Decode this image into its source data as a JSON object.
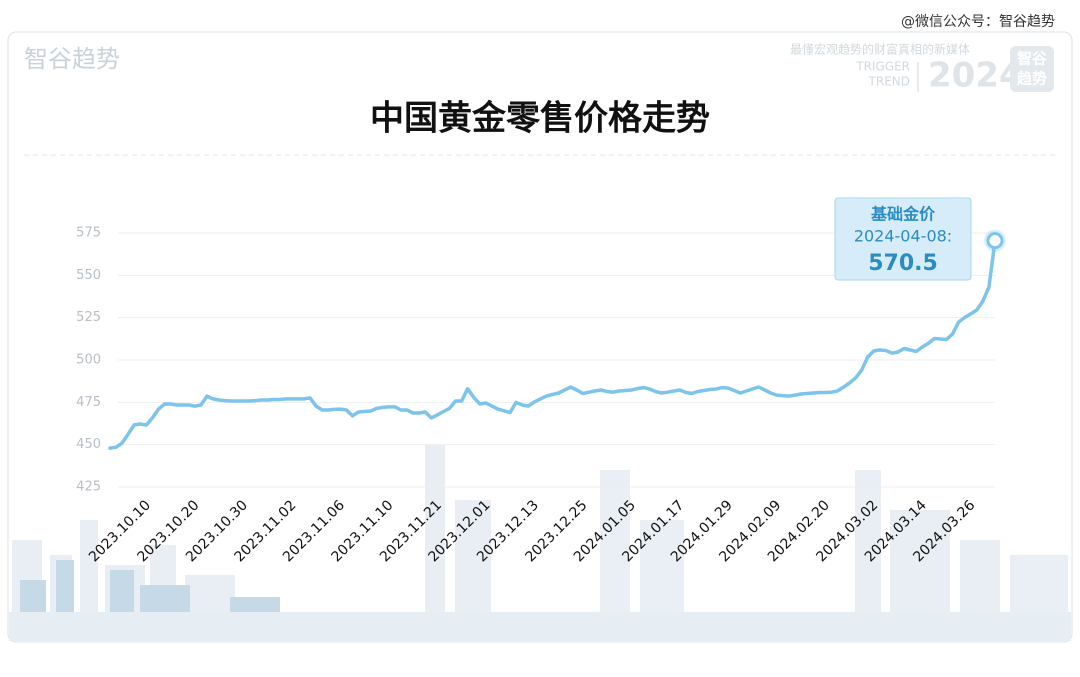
{
  "brand": {
    "watermark": "@微信公众号：智谷趋势",
    "logo": "智谷趋势",
    "slogan": "最懂宏观趋势的财富真相的新媒体",
    "trigger": "TRIGGER",
    "trend": "TREND",
    "year": "2024",
    "badge_top": "智谷",
    "badge_bottom": "趋势"
  },
  "chart_data": {
    "type": "line",
    "title": "中国黄金零售价格走势",
    "color": "#7cc4ec",
    "ylim": [
      425,
      575
    ],
    "yticks": [
      425,
      450,
      475,
      500,
      525,
      550,
      575
    ],
    "grid": true,
    "annotation": {
      "title": "基础金价",
      "date": "2024-04-08:"
    },
    "categories": [
      null,
      null,
      null,
      null,
      null,
      null,
      "2023.10.10",
      null,
      null,
      null,
      null,
      null,
      null,
      null,
      "2023.10.20",
      null,
      null,
      null,
      null,
      null,
      null,
      null,
      "2023.10.30",
      null,
      null,
      null,
      null,
      null,
      null,
      null,
      "2023.11.02",
      null,
      null,
      null,
      null,
      null,
      null,
      null,
      "2023.11.06",
      null,
      null,
      null,
      null,
      null,
      null,
      null,
      "2023.11.10",
      null,
      null,
      null,
      null,
      null,
      null,
      null,
      "2023.11.21",
      null,
      null,
      null,
      null,
      null,
      null,
      null,
      "2023.12.01",
      null,
      null,
      null,
      null,
      null,
      null,
      null,
      "2023.12.13",
      null,
      null,
      null,
      null,
      null,
      null,
      null,
      "2023.12.25",
      null,
      null,
      null,
      null,
      null,
      null,
      null,
      "2024.01.05",
      null,
      null,
      null,
      null,
      null,
      null,
      null,
      "2024.01.17",
      null,
      null,
      null,
      null,
      null,
      null,
      null,
      "2024.01.29",
      null,
      null,
      null,
      null,
      null,
      null,
      null,
      "2024.02.09",
      null,
      null,
      null,
      null,
      null,
      null,
      null,
      "2024.02.20",
      null,
      null,
      null,
      null,
      null,
      null,
      null,
      "2024.03.02",
      null,
      null,
      null,
      null,
      null,
      null,
      null,
      "2024.03.14",
      null,
      null,
      null,
      null,
      null,
      null,
      null,
      "2024.03.26",
      null,
      null,
      null,
      null
    ],
    "values": [
      448.0,
      448.5,
      451.0,
      456.3,
      461.7,
      462.2,
      461.6,
      465.8,
      471.0,
      474.0,
      474.0,
      473.4,
      473.4,
      473.4,
      472.8,
      473.4,
      478.7,
      477.0,
      476.4,
      476.0,
      475.8,
      475.8,
      475.8,
      475.8,
      476.0,
      476.4,
      476.4,
      476.7,
      476.7,
      477.0,
      477.0,
      477.0,
      477.0,
      477.6,
      472.8,
      470.5,
      470.5,
      470.8,
      471.0,
      470.5,
      467.0,
      469.3,
      469.6,
      469.9,
      471.4,
      472.0,
      472.3,
      472.3,
      470.5,
      470.5,
      468.7,
      468.7,
      469.3,
      465.8,
      467.5,
      469.6,
      471.4,
      475.8,
      475.8,
      483.0,
      478.0,
      474.0,
      474.6,
      472.8,
      471.0,
      470.0,
      469.0,
      475.0,
      473.4,
      472.8,
      475.2,
      477.0,
      478.7,
      479.6,
      480.5,
      482.3,
      484.0,
      482.3,
      480.2,
      481.0,
      481.7,
      482.3,
      481.4,
      481.0,
      481.7,
      482.0,
      482.3,
      483.1,
      483.7,
      482.9,
      481.4,
      480.5,
      481.0,
      481.7,
      482.3,
      480.8,
      480.2,
      481.4,
      482.0,
      482.6,
      482.9,
      483.7,
      483.4,
      482.0,
      480.5,
      481.7,
      482.9,
      484.0,
      482.3,
      480.5,
      479.3,
      479.0,
      478.7,
      479.3,
      479.9,
      480.2,
      480.5,
      480.8,
      480.8,
      481.0,
      481.7,
      484.0,
      486.4,
      489.4,
      494.0,
      501.8,
      505.3,
      505.9,
      505.6,
      504.0,
      504.7,
      506.8,
      505.9,
      505.0,
      507.7,
      509.8,
      512.7,
      512.4,
      512.1,
      515.4,
      522.4,
      525.1,
      527.2,
      529.5,
      534.8,
      543.0,
      570.5
    ]
  }
}
